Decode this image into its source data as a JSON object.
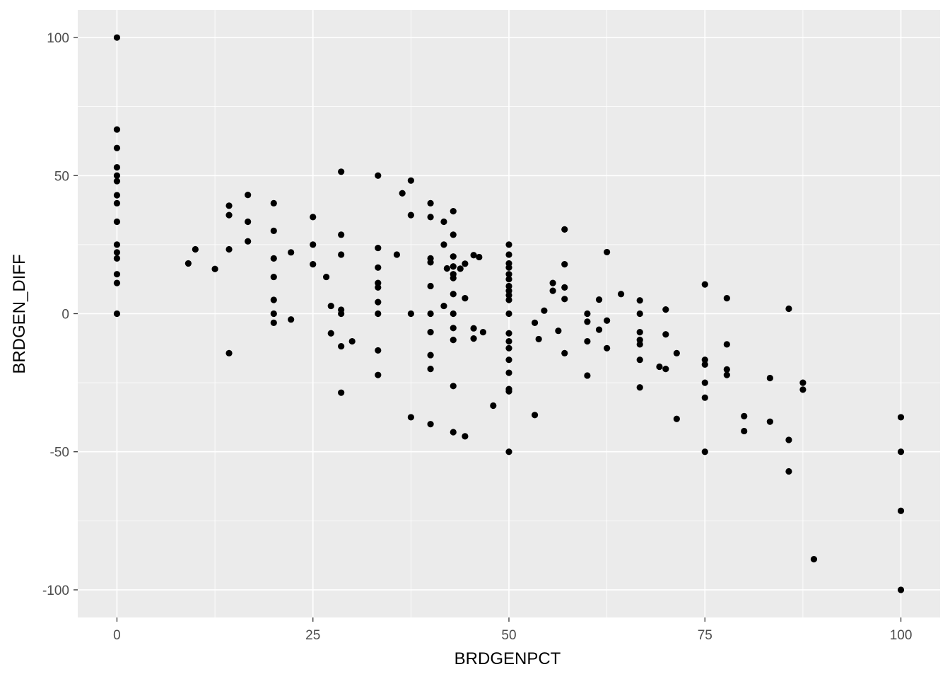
{
  "chart_data": {
    "type": "scatter",
    "title": "",
    "xlabel": "BRDGENPCT",
    "ylabel": "BRDGEN_DIFF",
    "xlim": [
      -5,
      105
    ],
    "ylim": [
      -110,
      110
    ],
    "x_ticks": [
      0,
      25,
      50,
      75,
      100
    ],
    "y_ticks": [
      -100,
      -50,
      0,
      50,
      100
    ],
    "x_tick_labels": [
      "0",
      "25",
      "50",
      "75",
      "100"
    ],
    "y_tick_labels": [
      "-100",
      "-50",
      "0",
      "50",
      "100"
    ],
    "grid": true,
    "legend": "none",
    "colors": {
      "panel": "#ebebeb",
      "grid": "#ffffff",
      "point": "#000000"
    },
    "points": [
      [
        0,
        100
      ],
      [
        0,
        66.7
      ],
      [
        0,
        60
      ],
      [
        0,
        53
      ],
      [
        0,
        50
      ],
      [
        0,
        48
      ],
      [
        0,
        42.9
      ],
      [
        0,
        40
      ],
      [
        0,
        33.3
      ],
      [
        0,
        25
      ],
      [
        0,
        22.2
      ],
      [
        0,
        20
      ],
      [
        0,
        14.3
      ],
      [
        0,
        11.1
      ],
      [
        0,
        0
      ],
      [
        9.1,
        18.2
      ],
      [
        10,
        23.3
      ],
      [
        12.5,
        16.2
      ],
      [
        14.3,
        39.1
      ],
      [
        14.3,
        35.7
      ],
      [
        14.3,
        23.3
      ],
      [
        14.3,
        -14.3
      ],
      [
        16.7,
        43
      ],
      [
        16.7,
        33.3
      ],
      [
        16.7,
        26.2
      ],
      [
        20,
        40
      ],
      [
        20,
        30
      ],
      [
        20,
        20
      ],
      [
        20,
        13.3
      ],
      [
        20,
        5
      ],
      [
        20,
        0
      ],
      [
        20,
        -3.3
      ],
      [
        22.2,
        22.2
      ],
      [
        22.2,
        -2.1
      ],
      [
        25,
        35
      ],
      [
        25,
        25
      ],
      [
        25,
        17.9
      ],
      [
        26.7,
        13.3
      ],
      [
        27.3,
        2.8
      ],
      [
        27.3,
        -7.1
      ],
      [
        28.6,
        51.4
      ],
      [
        28.6,
        28.6
      ],
      [
        28.6,
        21.4
      ],
      [
        28.6,
        1.4
      ],
      [
        28.6,
        0
      ],
      [
        28.6,
        -11.8
      ],
      [
        28.6,
        -28.6
      ],
      [
        30,
        -10
      ],
      [
        33.3,
        50
      ],
      [
        33.3,
        23.8
      ],
      [
        33.3,
        16.7
      ],
      [
        33.3,
        11.1
      ],
      [
        33.3,
        9.5
      ],
      [
        33.3,
        4.2
      ],
      [
        33.3,
        0
      ],
      [
        33.3,
        -13.3
      ],
      [
        33.3,
        -22.2
      ],
      [
        35.7,
        21.4
      ],
      [
        36.4,
        43.6
      ],
      [
        37.5,
        48.2
      ],
      [
        37.5,
        35.7
      ],
      [
        37.5,
        0
      ],
      [
        37.5,
        -37.5
      ],
      [
        40,
        40
      ],
      [
        40,
        35
      ],
      [
        40,
        20
      ],
      [
        40,
        18.6
      ],
      [
        40,
        10
      ],
      [
        40,
        0
      ],
      [
        40,
        -6.7
      ],
      [
        40,
        -15
      ],
      [
        40,
        -20
      ],
      [
        40,
        -40
      ],
      [
        41.7,
        33.3
      ],
      [
        41.7,
        25
      ],
      [
        41.7,
        2.8
      ],
      [
        42.1,
        16.4
      ],
      [
        42.9,
        37.1
      ],
      [
        42.9,
        28.6
      ],
      [
        42.9,
        20.7
      ],
      [
        42.9,
        17.1
      ],
      [
        42.9,
        14.3
      ],
      [
        42.9,
        12.9
      ],
      [
        42.9,
        7.1
      ],
      [
        42.9,
        0
      ],
      [
        42.9,
        -5.2
      ],
      [
        42.9,
        -9.5
      ],
      [
        42.9,
        -26.2
      ],
      [
        42.9,
        -42.9
      ],
      [
        43.8,
        16.3
      ],
      [
        44.4,
        18.1
      ],
      [
        44.4,
        5.6
      ],
      [
        44.4,
        -44.4
      ],
      [
        45.5,
        21.2
      ],
      [
        45.5,
        -5.3
      ],
      [
        45.5,
        -9
      ],
      [
        46.2,
        20.5
      ],
      [
        46.7,
        -6.7
      ],
      [
        48,
        -33.3
      ],
      [
        50,
        25
      ],
      [
        50,
        21.4
      ],
      [
        50,
        18.2
      ],
      [
        50,
        16.7
      ],
      [
        50,
        14.3
      ],
      [
        50,
        12.5
      ],
      [
        50,
        10
      ],
      [
        50,
        8.3
      ],
      [
        50,
        6.7
      ],
      [
        50,
        5
      ],
      [
        50,
        0
      ],
      [
        50,
        -7.1
      ],
      [
        50,
        -10
      ],
      [
        50,
        -12.5
      ],
      [
        50,
        -16.7
      ],
      [
        50,
        -21.4
      ],
      [
        50,
        -27.3
      ],
      [
        50,
        -28.1
      ],
      [
        50,
        -50
      ],
      [
        53.3,
        -3.3
      ],
      [
        53.3,
        -36.7
      ],
      [
        53.8,
        -9.2
      ],
      [
        54.5,
        1.1
      ],
      [
        55.6,
        11.1
      ],
      [
        55.6,
        8.3
      ],
      [
        56.3,
        -6.2
      ],
      [
        57.1,
        30.5
      ],
      [
        57.1,
        17.9
      ],
      [
        57.1,
        9.5
      ],
      [
        57.1,
        5.3
      ],
      [
        57.1,
        -14.3
      ],
      [
        60,
        0
      ],
      [
        60,
        -2.9
      ],
      [
        60,
        -10
      ],
      [
        60,
        -22.4
      ],
      [
        61.5,
        5.1
      ],
      [
        61.5,
        -5.8
      ],
      [
        62.5,
        22.3
      ],
      [
        62.5,
        -2.5
      ],
      [
        62.5,
        -12.5
      ],
      [
        64.3,
        7.1
      ],
      [
        66.7,
        4.8
      ],
      [
        66.7,
        0
      ],
      [
        66.7,
        -6.7
      ],
      [
        66.7,
        -9.5
      ],
      [
        66.7,
        -11.1
      ],
      [
        66.7,
        -16.7
      ],
      [
        66.7,
        -26.7
      ],
      [
        69.2,
        -19.2
      ],
      [
        70,
        1.5
      ],
      [
        70,
        -7.5
      ],
      [
        70,
        -20
      ],
      [
        71.4,
        -14.3
      ],
      [
        71.4,
        -38.1
      ],
      [
        75,
        10.6
      ],
      [
        75,
        -16.7
      ],
      [
        75,
        -18.4
      ],
      [
        75,
        -25
      ],
      [
        75,
        -30.4
      ],
      [
        75,
        -50
      ],
      [
        77.8,
        5.6
      ],
      [
        77.8,
        -11.1
      ],
      [
        77.8,
        -20.2
      ],
      [
        77.8,
        -22.2
      ],
      [
        80,
        -37.1
      ],
      [
        80,
        -42.5
      ],
      [
        83.3,
        -23.3
      ],
      [
        83.3,
        -39.1
      ],
      [
        85.7,
        1.8
      ],
      [
        85.7,
        -45.7
      ],
      [
        85.7,
        -57.1
      ],
      [
        87.5,
        -25
      ],
      [
        87.5,
        -27.5
      ],
      [
        88.9,
        -88.9
      ],
      [
        100,
        -37.5
      ],
      [
        100,
        -50
      ],
      [
        100,
        -71.4
      ],
      [
        100,
        -100
      ]
    ]
  }
}
